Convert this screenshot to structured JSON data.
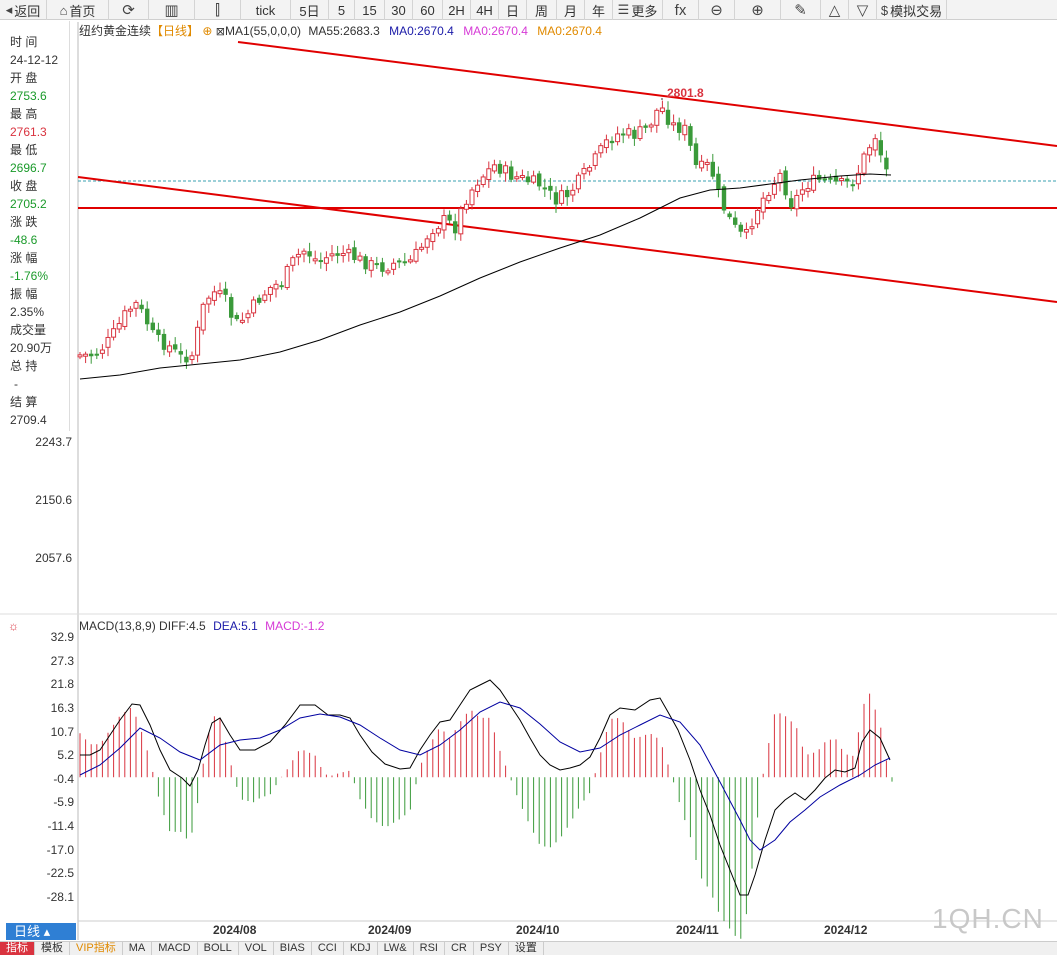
{
  "toolbar": {
    "items": [
      {
        "label": "返回",
        "icon": "◂"
      },
      {
        "label": "首页",
        "icon": "⌂"
      },
      {
        "label": "",
        "icon": "⟳"
      },
      {
        "label": "",
        "icon": "▥"
      },
      {
        "label": "",
        "icon": "⫿"
      },
      {
        "label": "tick",
        "icon": ""
      },
      {
        "label": "5日",
        "icon": ""
      },
      {
        "label": "5",
        "icon": ""
      },
      {
        "label": "15",
        "icon": ""
      },
      {
        "label": "30",
        "icon": ""
      },
      {
        "label": "60",
        "icon": ""
      },
      {
        "label": "2H",
        "icon": ""
      },
      {
        "label": "4H",
        "icon": ""
      },
      {
        "label": "日",
        "icon": ""
      },
      {
        "label": "周",
        "icon": ""
      },
      {
        "label": "月",
        "icon": ""
      },
      {
        "label": "年",
        "icon": ""
      },
      {
        "label": "更多",
        "icon": "☰"
      },
      {
        "label": "",
        "icon": "fx"
      },
      {
        "label": "",
        "icon": "⊖"
      },
      {
        "label": "",
        "icon": "⊕"
      },
      {
        "label": "",
        "icon": "✎"
      },
      {
        "label": "",
        "icon": "△"
      },
      {
        "label": "",
        "icon": "▽"
      },
      {
        "label": "模拟交易",
        "icon": "$"
      }
    ]
  },
  "info": {
    "time_label": "时 间",
    "time_value": "24-12-12",
    "open_label": "开 盘",
    "open_value": "2753.6",
    "high_label": "最 高",
    "high_value": "2761.3",
    "low_label": "最 低",
    "low_value": "2696.7",
    "close_label": "收 盘",
    "close_value": "2705.2",
    "change_label": "涨 跌",
    "change_value": "-48.6",
    "pct_label": "涨 幅",
    "pct_value": "-1.76%",
    "amp_label": "振 幅",
    "amp_value": "2.35%",
    "vol_label": "成交量",
    "vol_value": "20.90万",
    "oi_label": "总 持",
    "oi_value": "-",
    "settle_label": "结 算",
    "settle_value": "2709.4"
  },
  "legend": {
    "title": "纽约黄金连续",
    "period": "【日线】",
    "ma_name": "MA1(55,0,0,0)",
    "ma55": "MA55:2683.3",
    "ma0_a": "MA0:2670.4",
    "ma0_b": "MA0:2670.4",
    "ma0_c": "MA0:2670.4"
  },
  "macd_legend": {
    "name": "MACD(13,8,9)",
    "diff": "DIFF:4.5",
    "dea": "DEA:5.1",
    "macd": "MACD:-1.2"
  },
  "colors": {
    "up": "#d9333f",
    "down": "#3a9a3a",
    "trend": "#e00000",
    "ma": "#000000",
    "dea": "#0000a0"
  },
  "price_axis": [
    "2243.7",
    "2150.6",
    "2057.6"
  ],
  "macd_axis": [
    "32.9",
    "27.3",
    "21.8",
    "16.3",
    "10.7",
    "5.2",
    "-0.4",
    "-5.9",
    "-11.4",
    "-17.0",
    "-22.5",
    "-28.1"
  ],
  "dates": [
    "2024/08",
    "2024/09",
    "2024/10",
    "2024/11",
    "2024/12"
  ],
  "peak_label": "2801.8",
  "chart_data": {
    "type": "candlestick",
    "last_close": 2705.2,
    "peak_high": 2801.8,
    "ma55_last": 2683.3,
    "diff_last": 4.5,
    "dea_last": 5.1,
    "macd_last": -1.2
  },
  "period_button": "日线",
  "bottom_tabs": [
    "指标",
    "模板",
    "VIP指标",
    "MA",
    "MACD",
    "BOLL",
    "VOL",
    "BIAS",
    "CCI",
    "KDJ",
    "LW&",
    "RSI",
    "CR",
    "PSY",
    "设置"
  ],
  "watermark": "1QH.CN"
}
